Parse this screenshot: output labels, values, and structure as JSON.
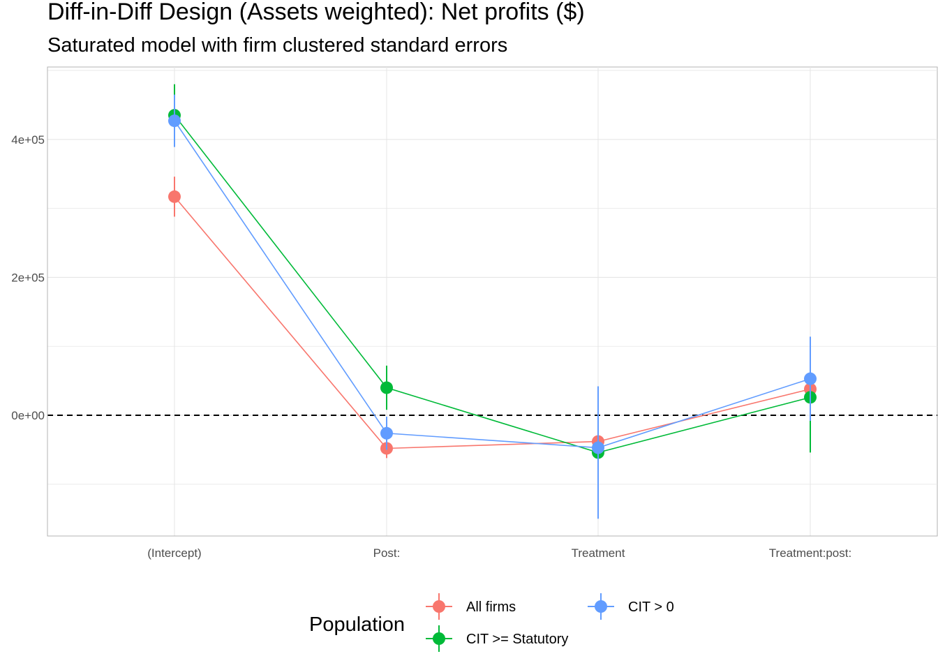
{
  "chart_data": {
    "type": "scatter",
    "title": "Diff-in-Diff Design (Assets weighted): Net profits  ($)",
    "subtitle": "Saturated model with firm clustered standard errors",
    "xlabel": "",
    "ylabel": "",
    "categories": [
      "(Intercept)",
      "Post:",
      "Treatment",
      "Treatment:post:"
    ],
    "ylim": [
      -175000,
      505000
    ],
    "y_ticks": [
      0,
      200000,
      400000
    ],
    "y_tick_labels": [
      "0e+00",
      "2e+05",
      "4e+05"
    ],
    "reference_line": {
      "y": 0,
      "style": "dashed"
    },
    "grid": true,
    "legend": {
      "title": "Population",
      "position": "bottom"
    },
    "series": [
      {
        "name": "All firms",
        "color": "#F8766D",
        "values": [
          317000,
          -48000,
          -38000,
          38000
        ],
        "lower": [
          288000,
          -62000,
          -50000,
          30000
        ],
        "upper": [
          346000,
          -34000,
          -26000,
          46000
        ]
      },
      {
        "name": "CIT >= Statutory",
        "color": "#00BA38",
        "values": [
          435000,
          40000,
          -54000,
          26000
        ],
        "lower": [
          390000,
          8000,
          -148000,
          -54000
        ],
        "upper": [
          480000,
          72000,
          40000,
          106000
        ]
      },
      {
        "name": "CIT > 0",
        "color": "#619CFF",
        "values": [
          427000,
          -26000,
          -47000,
          53000
        ],
        "lower": [
          389000,
          -50000,
          -150000,
          -8000
        ],
        "upper": [
          465000,
          -2000,
          42000,
          114000
        ]
      }
    ]
  }
}
